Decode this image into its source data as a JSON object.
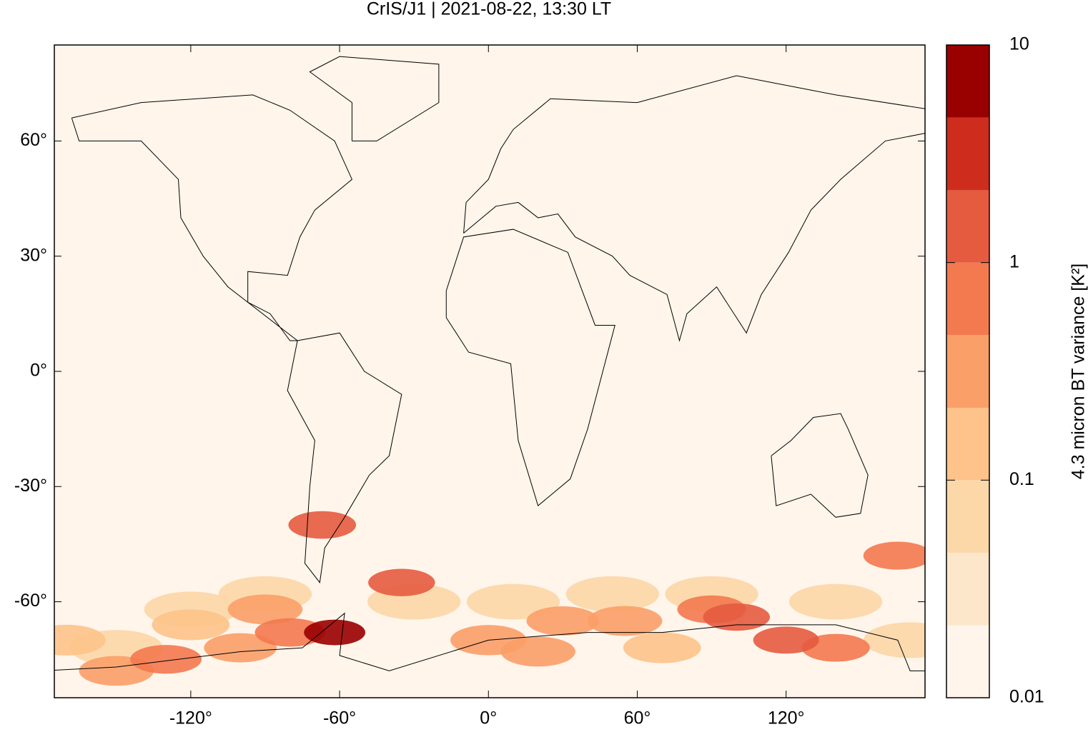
{
  "chart_data": {
    "type": "map",
    "title": "CrIS/J1 | 2021-08-22, 13:30 LT",
    "xlim": [
      -175,
      176
    ],
    "ylim": [
      -85,
      85
    ],
    "xticks": [
      {
        "value": -120,
        "label": "-120°"
      },
      {
        "value": -60,
        "label": "-60°"
      },
      {
        "value": 0,
        "label": "0°"
      },
      {
        "value": 60,
        "label": "60°"
      },
      {
        "value": 120,
        "label": "120°"
      }
    ],
    "yticks": [
      {
        "value": 60,
        "label": "60°"
      },
      {
        "value": 30,
        "label": "30°"
      },
      {
        "value": 0,
        "label": "0°"
      },
      {
        "value": -30,
        "label": "-30°"
      },
      {
        "value": -60,
        "label": "-60°"
      }
    ],
    "colorbar": {
      "label": "4.3 micron BT variance [K²]",
      "log": true,
      "lim": [
        0.01,
        10
      ],
      "ticks": [
        0.01,
        0.1,
        1,
        10
      ],
      "levels": [
        0.01,
        0.0215,
        0.0464,
        0.1,
        0.215,
        0.464,
        1,
        2.15,
        4.64,
        10
      ],
      "colors": [
        "#fff5eb",
        "#fde7cb",
        "#fcd7a7",
        "#fdc38a",
        "#fb9f68",
        "#f3794f",
        "#e55b40",
        "#ce2d1e",
        "#990000"
      ]
    },
    "hotspots": [
      {
        "lon": -150,
        "lat": -72,
        "value": 0.05
      },
      {
        "lon": -120,
        "lat": -62,
        "value": 0.05
      },
      {
        "lon": -90,
        "lat": -58,
        "value": 0.05
      },
      {
        "lon": -30,
        "lat": -60,
        "value": 0.05
      },
      {
        "lon": 10,
        "lat": -60,
        "value": 0.05
      },
      {
        "lon": 50,
        "lat": -58,
        "value": 0.05
      },
      {
        "lon": 90,
        "lat": -58,
        "value": 0.05
      },
      {
        "lon": 140,
        "lat": -60,
        "value": 0.05
      },
      {
        "lon": 170,
        "lat": -70,
        "value": 0.05
      },
      {
        "lon": -170,
        "lat": -70,
        "value": 0.2
      },
      {
        "lon": -120,
        "lat": -66,
        "value": 0.2
      },
      {
        "lon": 0,
        "lat": -70,
        "value": 0.25
      },
      {
        "lon": 20,
        "lat": -73,
        "value": 0.3
      },
      {
        "lon": 55,
        "lat": -65,
        "value": 0.3
      },
      {
        "lon": 70,
        "lat": -72,
        "value": 0.2
      },
      {
        "lon": -90,
        "lat": -62,
        "value": 0.3
      },
      {
        "lon": -150,
        "lat": -78,
        "value": 0.3
      },
      {
        "lon": -100,
        "lat": -72,
        "value": 0.4
      },
      {
        "lon": 30,
        "lat": -65,
        "value": 0.4
      },
      {
        "lon": -130,
        "lat": -75,
        "value": 0.5
      },
      {
        "lon": -80,
        "lat": -68,
        "value": 0.6
      },
      {
        "lon": 90,
        "lat": -62,
        "value": 0.8
      },
      {
        "lon": 165,
        "lat": -48,
        "value": 0.8
      },
      {
        "lon": 140,
        "lat": -72,
        "value": 0.9
      },
      {
        "lon": -67,
        "lat": -40,
        "value": 1.0
      },
      {
        "lon": -35,
        "lat": -55,
        "value": 1.2
      },
      {
        "lon": 100,
        "lat": -64,
        "value": 1.2
      },
      {
        "lon": 120,
        "lat": -70,
        "value": 1.5
      },
      {
        "lon": -62,
        "lat": -68,
        "value": 5
      }
    ]
  }
}
